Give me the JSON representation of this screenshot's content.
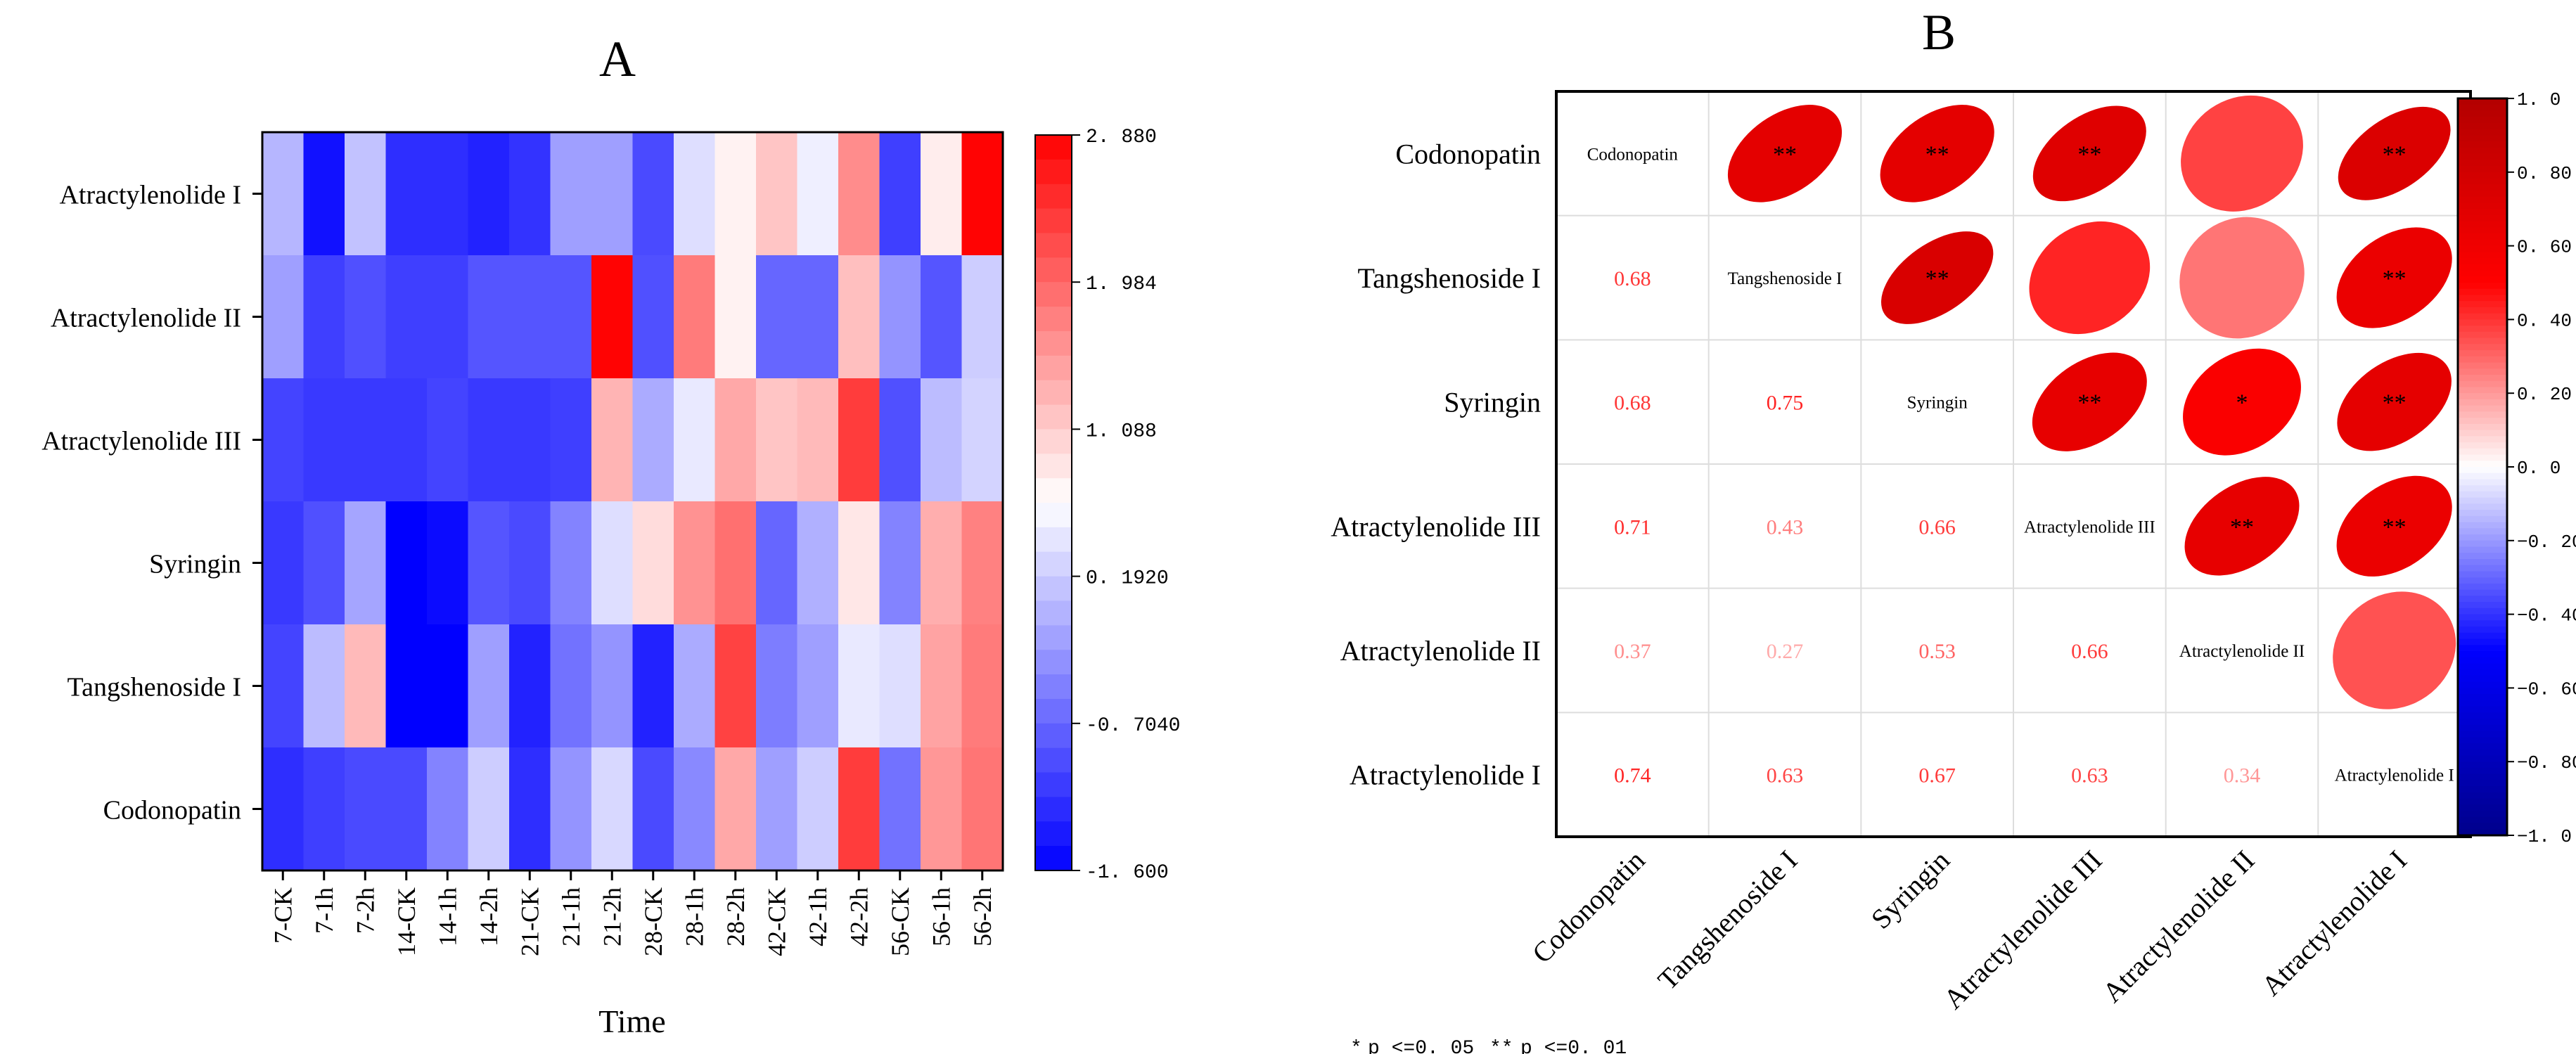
{
  "chart_data": [
    {
      "panel_label": "A",
      "type": "heatmap",
      "xlabel": "Time",
      "ylabel": "",
      "rows": [
        "Atractylenolide I",
        "Atractylenolide II",
        "Atractylenolide III",
        "Syringin",
        "Tangshenoside I",
        "Codonopatin"
      ],
      "columns": [
        "7-CK",
        "7-1h",
        "7-2h",
        "14-CK",
        "14-1h",
        "14-2h",
        "21-CK",
        "21-1h",
        "21-2h",
        "28-CK",
        "28-1h",
        "28-2h",
        "42-CK",
        "42-1h",
        "42-2h",
        "56-CK",
        "56-1h",
        "56-2h"
      ],
      "values": [
        [
          0.0,
          -1.45,
          0.1,
          -1.2,
          -1.2,
          -1.3,
          -1.15,
          -0.2,
          -0.2,
          -0.95,
          0.35,
          0.75,
          1.15,
          0.5,
          1.65,
          -1.05,
          0.8,
          2.85
        ],
        [
          -0.2,
          -1.05,
          -0.9,
          -1.05,
          -1.05,
          -0.85,
          -0.85,
          -0.85,
          2.85,
          -0.9,
          1.8,
          0.75,
          -0.7,
          -0.7,
          1.2,
          -0.3,
          -0.85,
          0.2
        ],
        [
          -1.0,
          -1.1,
          -1.1,
          -1.1,
          -1.0,
          -1.1,
          -1.1,
          -1.05,
          1.3,
          -0.1,
          0.45,
          1.4,
          1.15,
          1.25,
          2.35,
          -0.9,
          0.05,
          0.25
        ],
        [
          -1.1,
          -0.9,
          -0.15,
          -1.6,
          -1.5,
          -0.85,
          -0.95,
          -0.45,
          0.35,
          0.95,
          1.6,
          1.9,
          -0.7,
          -0.05,
          0.85,
          -0.45,
          1.35,
          1.75
        ],
        [
          -1.0,
          0.05,
          1.25,
          -1.6,
          -1.6,
          -0.2,
          -1.3,
          -0.6,
          -0.3,
          -1.3,
          -0.1,
          2.3,
          -0.5,
          -0.2,
          0.45,
          0.35,
          1.45,
          1.8
        ],
        [
          -1.2,
          -1.05,
          -0.95,
          -0.95,
          -0.45,
          0.2,
          -1.2,
          -0.3,
          0.3,
          -0.95,
          -0.4,
          1.4,
          -0.2,
          0.2,
          2.35,
          -0.6,
          1.55,
          1.85
        ]
      ],
      "colorbar": {
        "min": -1.6,
        "max": 2.88,
        "ticks": [
          2.88,
          1.984,
          1.088,
          0.192,
          -0.704,
          -1.6
        ],
        "tick_labels": [
          "2. 880",
          "1. 984",
          "1. 088",
          "0. 1920",
          "-0. 7040",
          "-1. 600"
        ],
        "colors": [
          "#0000ff",
          "#ffffff",
          "#ff0000"
        ]
      }
    },
    {
      "panel_label": "B",
      "type": "heatmap",
      "variables": [
        "Codonopatin",
        "Tangshenoside I",
        "Syringin",
        "Atractylenolide III",
        "Atractylenolide II",
        "Atractylenolide I"
      ],
      "correlations": [
        [
          1.0,
          0.68,
          0.68,
          0.71,
          0.37,
          0.74
        ],
        [
          0.68,
          1.0,
          0.75,
          0.43,
          0.27,
          0.63
        ],
        [
          0.68,
          0.75,
          1.0,
          0.66,
          0.53,
          0.67
        ],
        [
          0.71,
          0.43,
          0.66,
          1.0,
          0.66,
          0.63
        ],
        [
          0.37,
          0.27,
          0.53,
          0.66,
          1.0,
          0.34
        ],
        [
          0.74,
          0.63,
          0.67,
          0.63,
          0.34,
          1.0
        ]
      ],
      "lower_labels": [
        [
          "",
          "",
          "",
          "",
          "",
          ""
        ],
        [
          "0.68",
          "",
          "",
          "",
          "",
          ""
        ],
        [
          "0.68",
          "0.75",
          "",
          "",
          "",
          ""
        ],
        [
          "0.71",
          "0.43",
          "0.66",
          "",
          "",
          ""
        ],
        [
          "0.37",
          "0.27",
          "0.53",
          "0.66",
          "",
          ""
        ],
        [
          "0.74",
          "0.63",
          "0.67",
          "0.63",
          "0.34",
          ""
        ]
      ],
      "significance": [
        [
          "",
          "**",
          "**",
          "**",
          "",
          "**"
        ],
        [
          "",
          "",
          "**",
          "",
          "",
          "**"
        ],
        [
          "",
          "",
          "",
          "**",
          "*",
          "**"
        ],
        [
          "",
          "",
          "",
          "",
          "**",
          "**"
        ],
        [
          "",
          "",
          "",
          "",
          "",
          ""
        ],
        [
          "",
          "",
          "",
          "",
          "",
          ""
        ]
      ],
      "colorbar": {
        "min": -1.0,
        "max": 1.0,
        "ticks": [
          1.0,
          0.8,
          0.6,
          0.4,
          0.2,
          0.0,
          -0.2,
          -0.4,
          -0.6,
          -0.8,
          -1.0
        ],
        "tick_labels": [
          "1. 0",
          "0. 80",
          "0. 60",
          "0. 40",
          "0. 20",
          "0. 0",
          "−0. 20",
          "−0. 40",
          "−0. 60",
          "−0. 80",
          "−1. 0"
        ],
        "colors": [
          "#00008b",
          "#0000ff",
          "#ffffff",
          "#ff0000",
          "#b30000"
        ]
      },
      "legend_note": {
        "single_star": "*",
        "single_text": "p <=0. 05",
        "double_star": "**",
        "double_text": "p <=0. 01"
      }
    }
  ]
}
